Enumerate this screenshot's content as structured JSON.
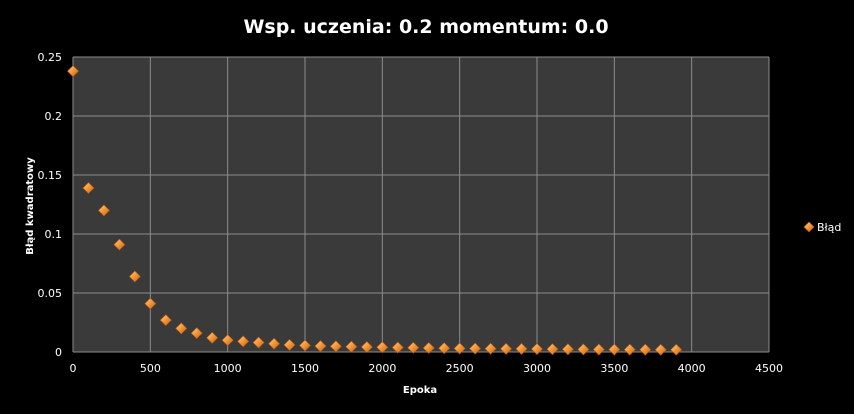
{
  "chart_data": {
    "type": "scatter",
    "title": "Wsp. uczenia: 0.2 momentum: 0.0",
    "xlabel": "Epoka",
    "ylabel": "Błąd kwadratowy",
    "xlim": [
      0,
      4500
    ],
    "ylim": [
      0,
      0.25
    ],
    "x_ticks": [
      "0",
      "500",
      "1000",
      "1500",
      "2000",
      "2500",
      "3000",
      "3500",
      "4000",
      "4500"
    ],
    "y_ticks": [
      "0",
      "0.05",
      "0.1",
      "0.15",
      "0.2",
      "0.25"
    ],
    "grid": true,
    "legend_position": "right",
    "colors": {
      "background": "#000000",
      "plot_area": "#3a3a3a",
      "gridline": "#8c8c8c",
      "marker": "#f28a2a",
      "marker_highlight": "#ffc07a"
    },
    "series": [
      {
        "name": "Błąd",
        "x": [
          0,
          100,
          200,
          300,
          400,
          500,
          600,
          700,
          800,
          900,
          1000,
          1100,
          1200,
          1300,
          1400,
          1500,
          1600,
          1700,
          1800,
          1900,
          2000,
          2100,
          2200,
          2300,
          2400,
          2500,
          2600,
          2700,
          2800,
          2900,
          3000,
          3100,
          3200,
          3300,
          3400,
          3500,
          3600,
          3700,
          3800,
          3900
        ],
        "y": [
          0.238,
          0.139,
          0.12,
          0.091,
          0.064,
          0.041,
          0.027,
          0.02,
          0.016,
          0.012,
          0.01,
          0.009,
          0.008,
          0.007,
          0.006,
          0.0055,
          0.005,
          0.0048,
          0.0045,
          0.0042,
          0.004,
          0.0038,
          0.0036,
          0.0034,
          0.0032,
          0.003,
          0.0029,
          0.0028,
          0.0027,
          0.0026,
          0.0025,
          0.0024,
          0.0023,
          0.0022,
          0.0021,
          0.0021,
          0.002,
          0.002,
          0.0019,
          0.0019
        ]
      }
    ]
  }
}
